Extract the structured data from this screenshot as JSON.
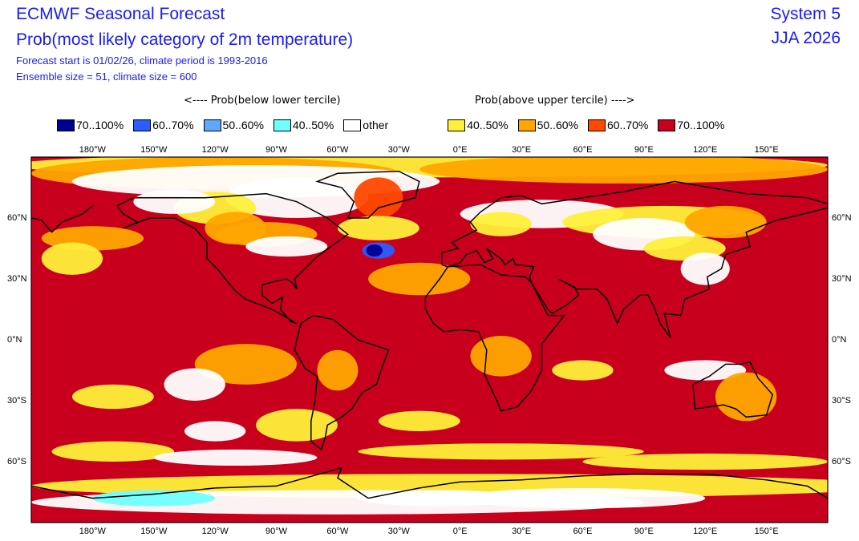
{
  "header": {
    "title": "ECMWF Seasonal Forecast",
    "subtitle": "Prob(most likely category of 2m temperature)",
    "info_line1": "Forecast start is 01/02/26, climate period is 1993-2016",
    "info_line2": "Ensemble size = 51, climate size = 600",
    "system": "System 5",
    "season": "JJA 2026"
  },
  "legend": {
    "below_heading": "<---- Prob(below lower tercile)",
    "above_heading": "Prob(above upper tercile) ---->",
    "items": [
      {
        "label": "70..100%",
        "color": "#000090"
      },
      {
        "label": "60..70%",
        "color": "#2a5cff"
      },
      {
        "label": "50..60%",
        "color": "#60a8ff"
      },
      {
        "label": "40..50%",
        "color": "#70ffff"
      },
      {
        "label": "other",
        "color": "#ffffff"
      },
      {
        "label": "40..50%",
        "color": "#ffef3a"
      },
      {
        "label": "50..60%",
        "color": "#ffa600"
      },
      {
        "label": "60..70%",
        "color": "#ff4800"
      },
      {
        "label": "70..100%",
        "color": "#c8001e"
      }
    ]
  },
  "map": {
    "projection": "cylindrical equidistant",
    "lon_range": [
      -210,
      180
    ],
    "lat_range": [
      -90,
      90
    ],
    "lon_labels": [
      {
        "lon": -180,
        "label": "180°W"
      },
      {
        "lon": -150,
        "label": "150°W"
      },
      {
        "lon": -120,
        "label": "120°W"
      },
      {
        "lon": -90,
        "label": "90°W"
      },
      {
        "lon": -60,
        "label": "60°W"
      },
      {
        "lon": -30,
        "label": "30°W"
      },
      {
        "lon": 0,
        "label": "0°E"
      },
      {
        "lon": 30,
        "label": "30°E"
      },
      {
        "lon": 60,
        "label": "60°E"
      },
      {
        "lon": 90,
        "label": "90°E"
      },
      {
        "lon": 120,
        "label": "120°E"
      },
      {
        "lon": 150,
        "label": "150°E"
      }
    ],
    "lat_labels": [
      {
        "lat": 60,
        "label": "60°N"
      },
      {
        "lat": 30,
        "label": "30°N"
      },
      {
        "lat": 0,
        "label": "0°N"
      },
      {
        "lat": -30,
        "label": "30°S"
      },
      {
        "lat": -60,
        "label": "60°S"
      }
    ]
  }
}
